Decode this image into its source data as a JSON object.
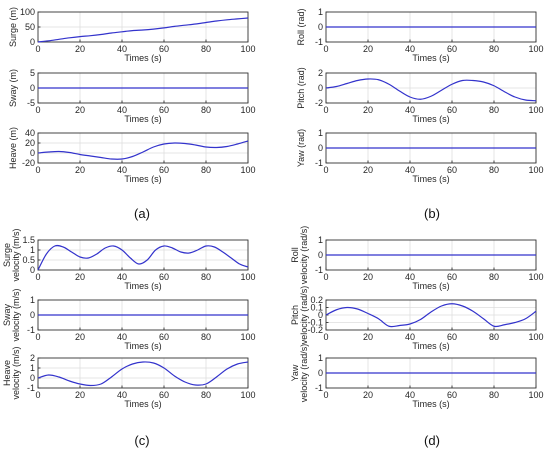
{
  "colors": {
    "series": "#3333cc",
    "grid": "#dedede",
    "axis": "#333333"
  },
  "panel_labels": [
    "(a)",
    "(b)",
    "(c)",
    "(d)"
  ],
  "chart_data": [
    {
      "type": "line",
      "panel": "(a)",
      "xlabel": "Times (s)",
      "ylabel": [
        "Surge (m)"
      ],
      "xlim": [
        0,
        100
      ],
      "ylim": [
        0,
        100
      ],
      "xticks": [
        0,
        20,
        40,
        60,
        80,
        100
      ],
      "yticks": [
        0,
        50,
        100
      ],
      "grid": true,
      "x": [
        0,
        5,
        10,
        15,
        20,
        25,
        30,
        35,
        40,
        45,
        50,
        55,
        60,
        65,
        70,
        75,
        80,
        85,
        90,
        95,
        100
      ],
      "series": [
        {
          "values": [
            0,
            4,
            9,
            14,
            18,
            21,
            25,
            30,
            34,
            38,
            40,
            43,
            47,
            52,
            56,
            60,
            65,
            70,
            74,
            77,
            80
          ]
        }
      ]
    },
    {
      "type": "line",
      "panel": "(a)",
      "xlabel": "Times (s)",
      "ylabel": [
        "Sway (m)"
      ],
      "xlim": [
        0,
        100
      ],
      "ylim": [
        -5,
        5
      ],
      "xticks": [
        0,
        20,
        40,
        60,
        80,
        100
      ],
      "yticks": [
        -5,
        0,
        5
      ],
      "grid": true,
      "x": [
        0,
        100
      ],
      "series": [
        {
          "values": [
            0,
            0
          ]
        }
      ]
    },
    {
      "type": "line",
      "panel": "(a)",
      "xlabel": "Times (s)",
      "ylabel": [
        "Heave (m)"
      ],
      "xlim": [
        0,
        100
      ],
      "ylim": [
        -20,
        40
      ],
      "xticks": [
        0,
        20,
        40,
        60,
        80,
        100
      ],
      "yticks": [
        -20,
        0,
        20,
        40
      ],
      "grid": true,
      "x": [
        0,
        5,
        10,
        15,
        20,
        25,
        30,
        35,
        40,
        45,
        50,
        55,
        60,
        65,
        70,
        75,
        80,
        85,
        90,
        95,
        100
      ],
      "series": [
        {
          "values": [
            0,
            2,
            3,
            1,
            -3,
            -6,
            -9,
            -12,
            -12,
            -7,
            2,
            12,
            18,
            20,
            19,
            16,
            12,
            11,
            13,
            18,
            24
          ]
        }
      ]
    },
    {
      "type": "line",
      "panel": "(b)",
      "xlabel": "Times (s)",
      "ylabel": [
        "Roll (rad)"
      ],
      "xlim": [
        0,
        100
      ],
      "ylim": [
        -1,
        1
      ],
      "xticks": [
        0,
        20,
        40,
        60,
        80,
        100
      ],
      "yticks": [
        -1,
        0,
        1
      ],
      "grid": true,
      "x": [
        0,
        100
      ],
      "series": [
        {
          "values": [
            0,
            0
          ]
        }
      ]
    },
    {
      "type": "line",
      "panel": "(b)",
      "xlabel": "Times (s)",
      "ylabel": [
        "Pitch (rad)"
      ],
      "xlim": [
        0,
        100
      ],
      "ylim": [
        -2,
        2
      ],
      "xticks": [
        0,
        20,
        40,
        60,
        80,
        100
      ],
      "yticks": [
        -2,
        0,
        2
      ],
      "grid": true,
      "x": [
        0,
        5,
        10,
        15,
        20,
        25,
        30,
        35,
        40,
        45,
        50,
        55,
        60,
        65,
        70,
        75,
        80,
        85,
        90,
        95,
        100
      ],
      "series": [
        {
          "values": [
            0,
            0.2,
            0.6,
            1.0,
            1.2,
            1.1,
            0.5,
            -0.4,
            -1.2,
            -1.5,
            -1.1,
            -0.3,
            0.5,
            1.0,
            1.0,
            0.8,
            0.3,
            -0.5,
            -1.2,
            -1.6,
            -1.7
          ]
        }
      ]
    },
    {
      "type": "line",
      "panel": "(b)",
      "xlabel": "Times (s)",
      "ylabel": [
        "Yaw (rad)"
      ],
      "xlim": [
        0,
        100
      ],
      "ylim": [
        -1,
        1
      ],
      "xticks": [
        0,
        20,
        40,
        60,
        80,
        100
      ],
      "yticks": [
        -1,
        0,
        1
      ],
      "grid": true,
      "x": [
        0,
        100
      ],
      "series": [
        {
          "values": [
            0,
            0
          ]
        }
      ]
    },
    {
      "type": "line",
      "panel": "(c)",
      "xlabel": "Times (s)",
      "ylabel": [
        "Surge",
        "velocity (m/s)"
      ],
      "xlim": [
        0,
        100
      ],
      "ylim": [
        0,
        1.5
      ],
      "xticks": [
        0,
        20,
        40,
        60,
        80,
        100
      ],
      "yticks": [
        0,
        0.5,
        1,
        1.5
      ],
      "grid": true,
      "x": [
        0,
        4,
        8,
        12,
        16,
        20,
        24,
        28,
        32,
        36,
        40,
        44,
        48,
        52,
        56,
        60,
        64,
        68,
        72,
        76,
        80,
        84,
        88,
        92,
        96,
        100
      ],
      "series": [
        {
          "values": [
            0,
            0.8,
            1.2,
            1.15,
            0.9,
            0.65,
            0.6,
            0.8,
            1.1,
            1.2,
            1.0,
            0.6,
            0.3,
            0.5,
            1.0,
            1.2,
            1.1,
            0.9,
            0.85,
            1.0,
            1.2,
            1.15,
            0.9,
            0.6,
            0.3,
            0.15
          ]
        }
      ]
    },
    {
      "type": "line",
      "panel": "(c)",
      "xlabel": "Times (s)",
      "ylabel": [
        "Sway",
        "velocity (m/s)"
      ],
      "xlim": [
        0,
        100
      ],
      "ylim": [
        -1,
        1
      ],
      "xticks": [
        0,
        20,
        40,
        60,
        80,
        100
      ],
      "yticks": [
        -1,
        0,
        1
      ],
      "grid": true,
      "x": [
        0,
        100
      ],
      "series": [
        {
          "values": [
            0,
            0
          ]
        }
      ]
    },
    {
      "type": "line",
      "panel": "(c)",
      "xlabel": "Times (s)",
      "ylabel": [
        "Heave",
        "velocity (m/s)"
      ],
      "xlim": [
        0,
        100
      ],
      "ylim": [
        -1,
        2
      ],
      "xticks": [
        0,
        20,
        40,
        60,
        80,
        100
      ],
      "yticks": [
        -1,
        0,
        1,
        2
      ],
      "grid": true,
      "x": [
        0,
        5,
        10,
        15,
        20,
        25,
        30,
        35,
        40,
        45,
        50,
        55,
        60,
        65,
        70,
        75,
        80,
        85,
        90,
        95,
        100
      ],
      "series": [
        {
          "values": [
            0,
            0.3,
            0.1,
            -0.3,
            -0.6,
            -0.75,
            -0.6,
            0.1,
            0.9,
            1.4,
            1.6,
            1.5,
            1.0,
            0.2,
            -0.4,
            -0.7,
            -0.6,
            0.1,
            0.9,
            1.4,
            1.6
          ]
        }
      ]
    },
    {
      "type": "line",
      "panel": "(d)",
      "xlabel": "Times (s)",
      "ylabel": [
        "Roll",
        "velocity (rad/s)"
      ],
      "xlim": [
        0,
        100
      ],
      "ylim": [
        -1,
        1
      ],
      "xticks": [
        0,
        20,
        40,
        60,
        80,
        100
      ],
      "yticks": [
        -1,
        0,
        1
      ],
      "grid": true,
      "x": [
        0,
        100
      ],
      "series": [
        {
          "values": [
            0,
            0
          ]
        }
      ]
    },
    {
      "type": "line",
      "panel": "(d)",
      "xlabel": "Times (s)",
      "ylabel": [
        "Pitch",
        "velocity (rad/s)"
      ],
      "xlim": [
        0,
        100
      ],
      "ylim": [
        -0.2,
        0.2
      ],
      "xticks": [
        0,
        20,
        40,
        60,
        80,
        100
      ],
      "yticks": [
        -0.2,
        -0.1,
        0,
        0.1,
        0.2
      ],
      "grid": true,
      "x": [
        0,
        5,
        10,
        15,
        20,
        25,
        30,
        35,
        40,
        45,
        50,
        55,
        60,
        65,
        70,
        75,
        80,
        85,
        90,
        95,
        100
      ],
      "series": [
        {
          "values": [
            0,
            0.07,
            0.1,
            0.08,
            0.02,
            -0.05,
            -0.15,
            -0.14,
            -0.12,
            -0.06,
            0.04,
            0.12,
            0.15,
            0.12,
            0.05,
            -0.05,
            -0.15,
            -0.13,
            -0.1,
            -0.05,
            0.05
          ]
        }
      ]
    },
    {
      "type": "line",
      "panel": "(d)",
      "xlabel": "Times (s)",
      "ylabel": [
        "Yaw",
        "velocity (rad/s)"
      ],
      "xlim": [
        0,
        100
      ],
      "ylim": [
        -1,
        1
      ],
      "xticks": [
        0,
        20,
        40,
        60,
        80,
        100
      ],
      "yticks": [
        -1,
        0,
        1
      ],
      "grid": true,
      "x": [
        0,
        100
      ],
      "series": [
        {
          "values": [
            0,
            0
          ]
        }
      ]
    }
  ]
}
